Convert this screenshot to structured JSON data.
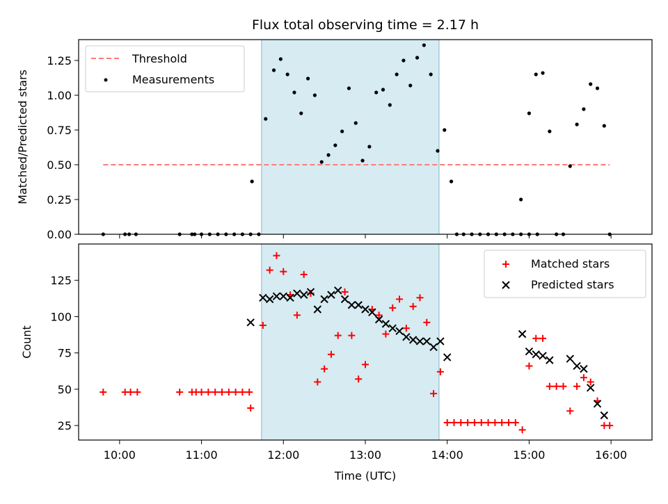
{
  "title": "Flux total observing time = 2.17 h",
  "colors": {
    "band": "#add8e6",
    "threshold": "#ff7a7a",
    "matched": "#ff0000",
    "predicted": "#000000",
    "measurement": "#000000"
  },
  "chart_data": [
    {
      "type": "scatter",
      "ylabel": "Matched/Predicted stars",
      "xlim": [
        "09:30",
        "16:30"
      ],
      "ylim": [
        0,
        1.4
      ],
      "yticks": [
        0,
        0.25,
        0.5,
        0.75,
        1.0,
        1.25
      ],
      "ytick_labels": [
        "0.00",
        "0.25",
        "0.50",
        "0.75",
        "1.00",
        "1.25"
      ],
      "highlight_band": [
        "11:44",
        "13:54"
      ],
      "legend": {
        "position": "upper-left",
        "threshold_label": "Threshold",
        "measurements_label": "Measurements"
      },
      "threshold": {
        "value": 0.5,
        "x_range": [
          "09:48",
          "15:59"
        ]
      },
      "measurements": [
        [
          "09:48",
          0
        ],
        [
          "10:04",
          0
        ],
        [
          "10:07",
          0
        ],
        [
          "10:12",
          0
        ],
        [
          "10:44",
          0
        ],
        [
          "10:53",
          0
        ],
        [
          "10:55",
          0
        ],
        [
          "11:00",
          0
        ],
        [
          "11:06",
          0
        ],
        [
          "11:12",
          0
        ],
        [
          "11:18",
          0
        ],
        [
          "11:24",
          0
        ],
        [
          "11:30",
          0
        ],
        [
          "11:36",
          0
        ],
        [
          "11:42",
          0
        ],
        [
          "11:37",
          0.38
        ],
        [
          "11:47",
          0.83
        ],
        [
          "11:53",
          1.18
        ],
        [
          "11:58",
          1.26
        ],
        [
          "12:03",
          1.15
        ],
        [
          "12:08",
          1.02
        ],
        [
          "12:13",
          0.87
        ],
        [
          "12:18",
          1.12
        ],
        [
          "12:23",
          1.0
        ],
        [
          "12:28",
          0.52
        ],
        [
          "12:33",
          0.57
        ],
        [
          "12:38",
          0.64
        ],
        [
          "12:43",
          0.74
        ],
        [
          "12:48",
          1.05
        ],
        [
          "12:53",
          0.8
        ],
        [
          "12:58",
          0.53
        ],
        [
          "13:03",
          0.63
        ],
        [
          "13:08",
          1.02
        ],
        [
          "13:13",
          1.04
        ],
        [
          "13:18",
          0.93
        ],
        [
          "13:23",
          1.15
        ],
        [
          "13:28",
          1.25
        ],
        [
          "13:33",
          1.07
        ],
        [
          "13:38",
          1.27
        ],
        [
          "13:43",
          1.36
        ],
        [
          "13:48",
          1.15
        ],
        [
          "13:53",
          0.6
        ],
        [
          "13:58",
          0.75
        ],
        [
          "14:03",
          0.38
        ],
        [
          "14:07",
          0
        ],
        [
          "14:12",
          0
        ],
        [
          "14:18",
          0
        ],
        [
          "14:24",
          0
        ],
        [
          "14:30",
          0
        ],
        [
          "14:36",
          0
        ],
        [
          "14:42",
          0
        ],
        [
          "14:48",
          0
        ],
        [
          "14:54",
          0
        ],
        [
          "15:00",
          0
        ],
        [
          "15:06",
          0
        ],
        [
          "14:54",
          0.25
        ],
        [
          "15:00",
          0.87
        ],
        [
          "15:05",
          1.15
        ],
        [
          "15:10",
          1.16
        ],
        [
          "15:15",
          0.74
        ],
        [
          "15:20",
          0
        ],
        [
          "15:25",
          0
        ],
        [
          "15:30",
          0.49
        ],
        [
          "15:35",
          0.79
        ],
        [
          "15:40",
          0.9
        ],
        [
          "15:45",
          1.08
        ],
        [
          "15:50",
          1.05
        ],
        [
          "15:55",
          0.78
        ],
        [
          "15:59",
          0
        ]
      ]
    },
    {
      "type": "scatter",
      "xlabel": "Time (UTC)",
      "ylabel": "Count",
      "xlim": [
        "09:30",
        "16:30"
      ],
      "ylim": [
        15,
        150
      ],
      "yticks": [
        25,
        50,
        75,
        100,
        125
      ],
      "ytick_labels": [
        "25",
        "50",
        "75",
        "100",
        "125"
      ],
      "xticks": [
        "10:00",
        "11:00",
        "12:00",
        "13:00",
        "14:00",
        "15:00",
        "16:00"
      ],
      "highlight_band": [
        "11:44",
        "13:54"
      ],
      "legend": {
        "position": "upper-right"
      },
      "series": [
        {
          "name": "Matched stars",
          "marker": "plus",
          "points": [
            [
              "09:48",
              48
            ],
            [
              "10:04",
              48
            ],
            [
              "10:08",
              48
            ],
            [
              "10:13",
              48
            ],
            [
              "10:44",
              48
            ],
            [
              "10:53",
              48
            ],
            [
              "10:56",
              48
            ],
            [
              "11:00",
              48
            ],
            [
              "11:05",
              48
            ],
            [
              "11:10",
              48
            ],
            [
              "11:15",
              48
            ],
            [
              "11:20",
              48
            ],
            [
              "11:25",
              48
            ],
            [
              "11:30",
              48
            ],
            [
              "11:35",
              48
            ],
            [
              "11:36",
              37
            ],
            [
              "11:45",
              94
            ],
            [
              "11:50",
              132
            ],
            [
              "11:55",
              142
            ],
            [
              "12:00",
              131
            ],
            [
              "12:05",
              115
            ],
            [
              "12:10",
              101
            ],
            [
              "12:15",
              129
            ],
            [
              "12:20",
              116
            ],
            [
              "12:25",
              55
            ],
            [
              "12:30",
              64
            ],
            [
              "12:35",
              74
            ],
            [
              "12:40",
              87
            ],
            [
              "12:45",
              117
            ],
            [
              "12:50",
              87
            ],
            [
              "12:55",
              57
            ],
            [
              "13:00",
              67
            ],
            [
              "13:05",
              105
            ],
            [
              "13:10",
              101
            ],
            [
              "13:15",
              88
            ],
            [
              "13:20",
              106
            ],
            [
              "13:25",
              112
            ],
            [
              "13:30",
              92
            ],
            [
              "13:35",
              107
            ],
            [
              "13:40",
              113
            ],
            [
              "13:45",
              96
            ],
            [
              "13:50",
              47
            ],
            [
              "13:55",
              62
            ],
            [
              "14:00",
              27
            ],
            [
              "14:05",
              27
            ],
            [
              "14:10",
              27
            ],
            [
              "14:15",
              27
            ],
            [
              "14:20",
              27
            ],
            [
              "14:25",
              27
            ],
            [
              "14:30",
              27
            ],
            [
              "14:35",
              27
            ],
            [
              "14:40",
              27
            ],
            [
              "14:45",
              27
            ],
            [
              "14:50",
              27
            ],
            [
              "14:55",
              22
            ],
            [
              "15:00",
              66
            ],
            [
              "15:05",
              85
            ],
            [
              "15:10",
              85
            ],
            [
              "15:15",
              52
            ],
            [
              "15:20",
              52
            ],
            [
              "15:25",
              52
            ],
            [
              "15:30",
              35
            ],
            [
              "15:35",
              52
            ],
            [
              "15:40",
              58
            ],
            [
              "15:45",
              55
            ],
            [
              "15:50",
              42
            ],
            [
              "15:55",
              25
            ],
            [
              "15:59",
              25
            ]
          ]
        },
        {
          "name": "Predicted stars",
          "marker": "x",
          "points": [
            [
              "11:36",
              96
            ],
            [
              "11:45",
              113
            ],
            [
              "11:50",
              112
            ],
            [
              "11:55",
              114
            ],
            [
              "12:00",
              114
            ],
            [
              "12:05",
              113
            ],
            [
              "12:10",
              116
            ],
            [
              "12:15",
              115
            ],
            [
              "12:20",
              117
            ],
            [
              "12:25",
              105
            ],
            [
              "12:30",
              112
            ],
            [
              "12:35",
              115
            ],
            [
              "12:40",
              118
            ],
            [
              "12:45",
              112
            ],
            [
              "12:50",
              108
            ],
            [
              "12:55",
              108
            ],
            [
              "13:00",
              105
            ],
            [
              "13:05",
              103
            ],
            [
              "13:10",
              98
            ],
            [
              "13:15",
              95
            ],
            [
              "13:20",
              92
            ],
            [
              "13:25",
              90
            ],
            [
              "13:30",
              86
            ],
            [
              "13:35",
              84
            ],
            [
              "13:40",
              83
            ],
            [
              "13:45",
              83
            ],
            [
              "13:50",
              79
            ],
            [
              "13:55",
              83
            ],
            [
              "14:00",
              72
            ],
            [
              "14:55",
              88
            ],
            [
              "15:00",
              76
            ],
            [
              "15:05",
              74
            ],
            [
              "15:10",
              73
            ],
            [
              "15:15",
              70
            ],
            [
              "15:30",
              71
            ],
            [
              "15:35",
              66
            ],
            [
              "15:40",
              64
            ],
            [
              "15:45",
              51
            ],
            [
              "15:50",
              40
            ],
            [
              "15:55",
              32
            ]
          ]
        }
      ]
    }
  ]
}
